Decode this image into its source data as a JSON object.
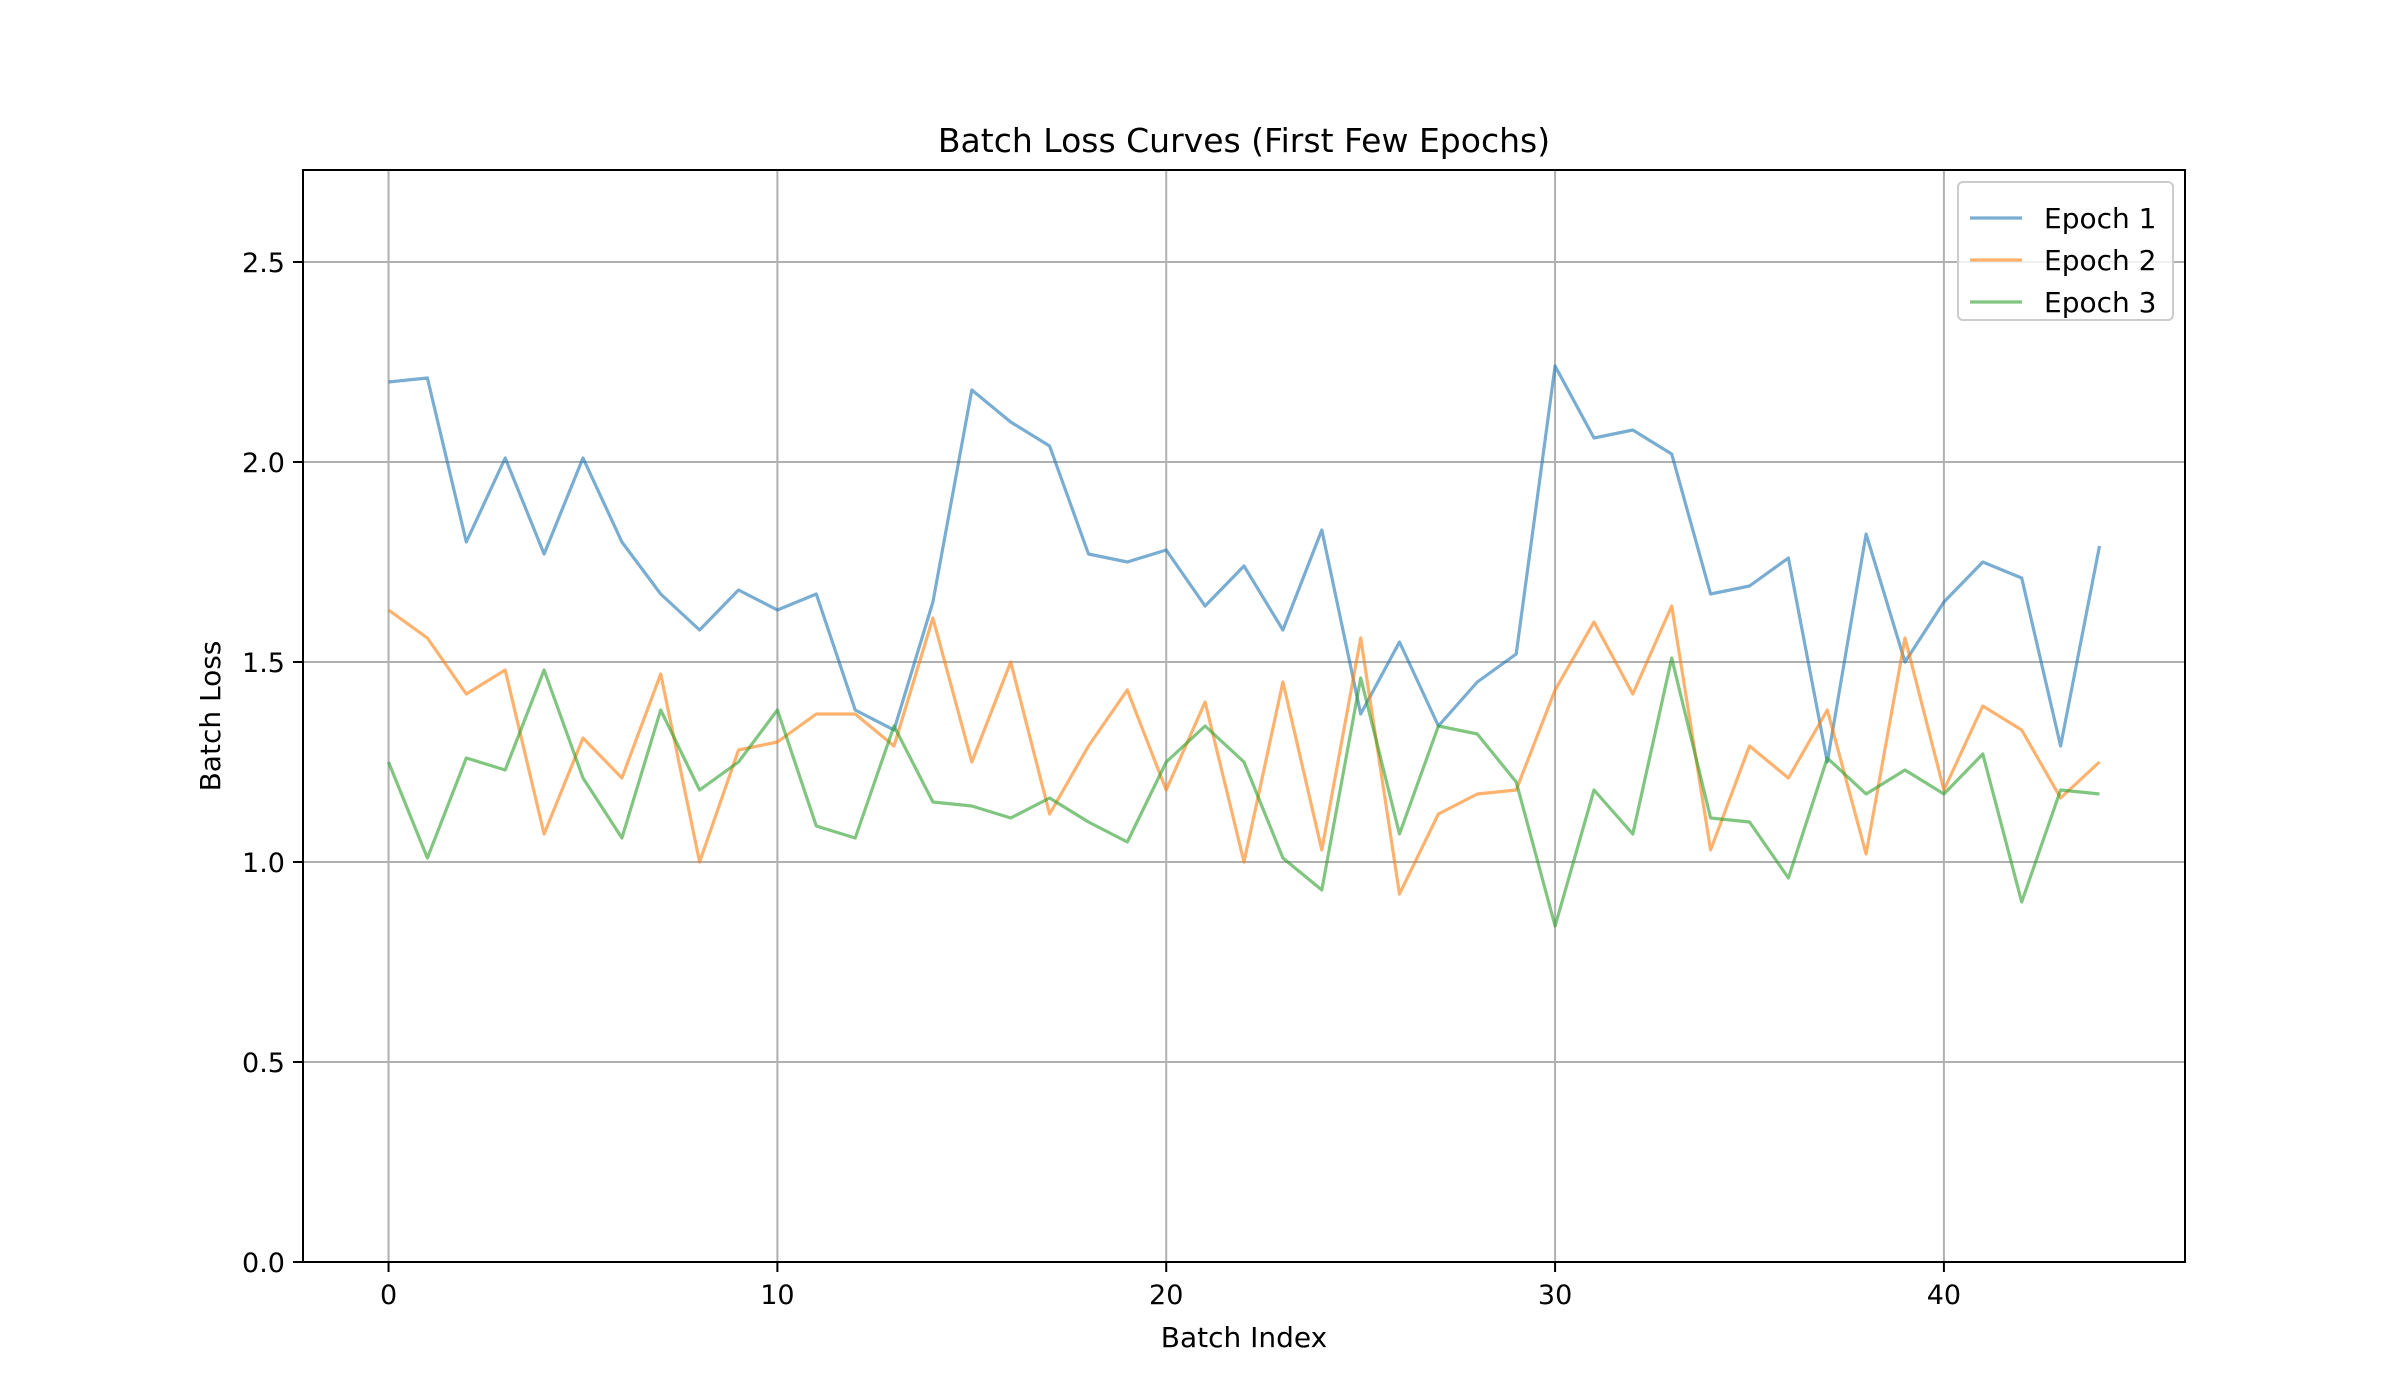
{
  "chart_data": {
    "type": "line",
    "title": "Batch Loss Curves (First Few Epochs)",
    "xlabel": "Batch Index",
    "ylabel": "Batch Loss",
    "xlim": [
      -2.2,
      46.2
    ],
    "ylim": [
      0,
      2.73
    ],
    "xticks": [
      0,
      10,
      20,
      30,
      40
    ],
    "yticks": [
      0.0,
      0.5,
      1.0,
      1.5,
      2.0,
      2.5
    ],
    "grid": true,
    "legend_position": "top-right",
    "x": [
      0,
      1,
      2,
      3,
      4,
      5,
      6,
      7,
      8,
      9,
      10,
      11,
      12,
      13,
      14,
      15,
      16,
      17,
      18,
      19,
      20,
      21,
      22,
      23,
      24,
      25,
      26,
      27,
      28,
      29,
      30,
      31,
      32,
      33,
      34,
      35,
      36,
      37,
      38,
      39,
      40,
      41,
      42,
      43,
      44
    ],
    "series": [
      {
        "name": "Epoch 1",
        "color": "#1f77b4",
        "values": [
          2.2,
          2.21,
          1.8,
          2.01,
          1.77,
          2.01,
          1.8,
          1.67,
          1.58,
          1.68,
          1.63,
          1.67,
          1.38,
          1.33,
          1.65,
          2.18,
          2.1,
          2.04,
          1.77,
          1.75,
          1.78,
          1.64,
          1.74,
          1.58,
          1.83,
          1.37,
          1.55,
          1.34,
          1.45,
          1.52,
          2.24,
          2.06,
          2.08,
          2.02,
          1.67,
          1.69,
          1.76,
          1.25,
          1.82,
          1.5,
          1.65,
          1.75,
          1.71,
          1.29,
          1.79
        ]
      },
      {
        "name": "Epoch 2",
        "color": "#ff7f0e",
        "values": [
          1.63,
          1.56,
          1.42,
          1.48,
          1.07,
          1.31,
          1.21,
          1.47,
          1.0,
          1.28,
          1.3,
          1.37,
          1.37,
          1.29,
          1.61,
          1.25,
          1.5,
          1.12,
          1.29,
          1.43,
          1.18,
          1.4,
          1.0,
          1.45,
          1.03,
          1.56,
          0.92,
          1.12,
          1.17,
          1.18,
          1.43,
          1.6,
          1.42,
          1.64,
          1.03,
          1.29,
          1.21,
          1.38,
          1.02,
          1.56,
          1.18,
          1.39,
          1.33,
          1.16,
          1.25
        ]
      },
      {
        "name": "Epoch 3",
        "color": "#2ca02c",
        "values": [
          1.25,
          1.01,
          1.26,
          1.23,
          1.48,
          1.21,
          1.06,
          1.38,
          1.18,
          1.25,
          1.38,
          1.09,
          1.06,
          1.34,
          1.15,
          1.14,
          1.11,
          1.16,
          1.1,
          1.05,
          1.25,
          1.34,
          1.25,
          1.01,
          0.93,
          1.46,
          1.07,
          1.34,
          1.32,
          1.2,
          0.84,
          1.18,
          1.07,
          1.51,
          1.11,
          1.1,
          0.96,
          1.26,
          1.17,
          1.23,
          1.17,
          1.27,
          0.9,
          1.18,
          1.17
        ]
      }
    ]
  }
}
